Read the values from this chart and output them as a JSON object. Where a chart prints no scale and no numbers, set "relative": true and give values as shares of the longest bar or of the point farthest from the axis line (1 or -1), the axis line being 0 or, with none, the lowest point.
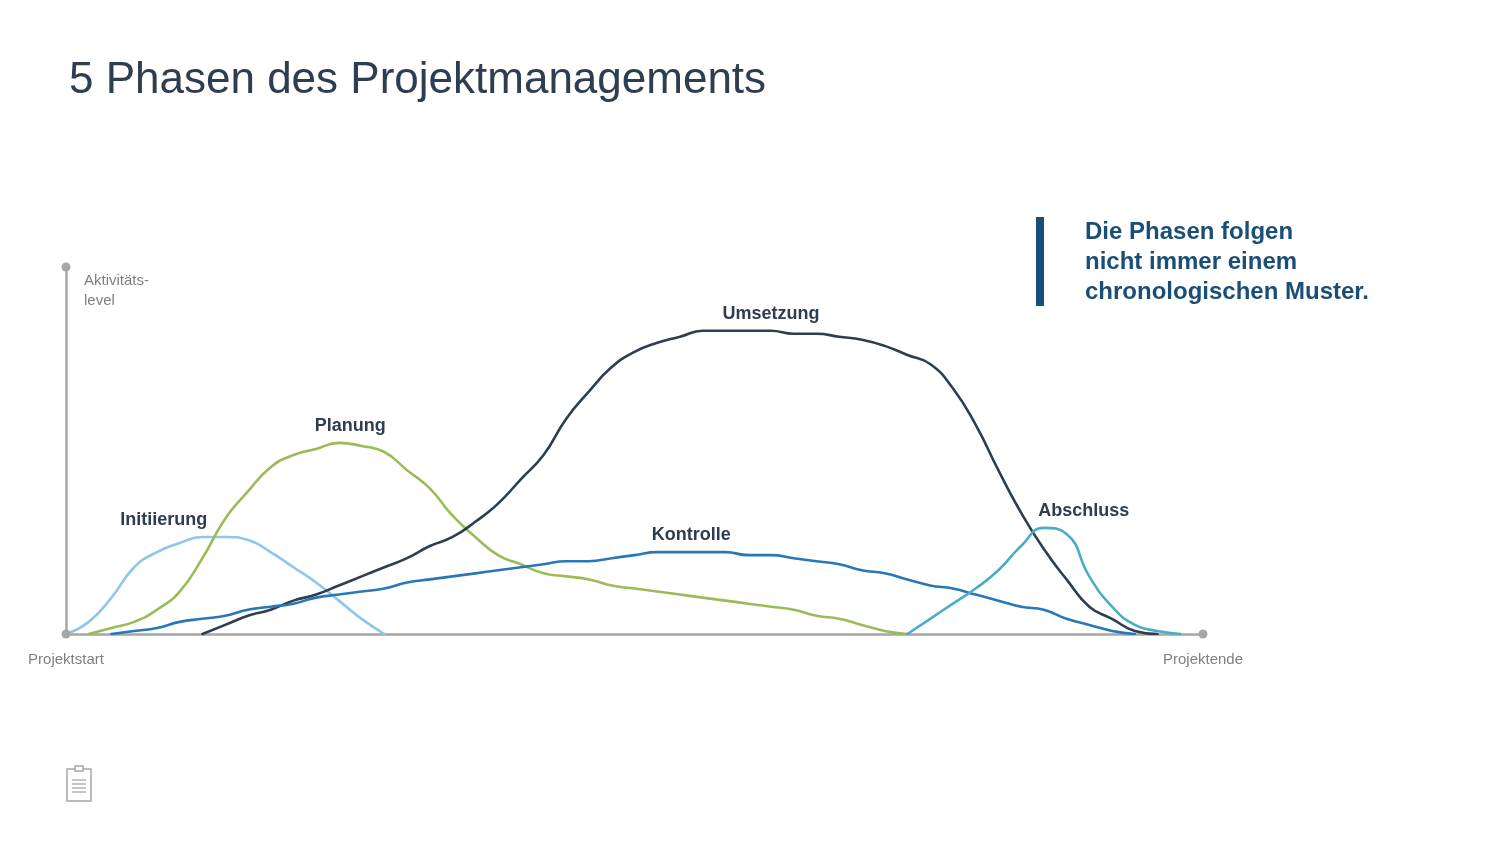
{
  "chart_data": {
    "type": "line",
    "title": "5 Phasen des Projektmanagements",
    "ylabel": "Aktivitäts-level",
    "annotations": [
      "Die Phasen folgen nicht immer einem chronologischen Muster."
    ],
    "relative": true,
    "categories": [
      "Projektstart",
      null,
      null,
      null,
      null,
      null,
      null,
      null,
      null,
      null,
      null,
      null,
      null,
      null,
      null,
      null,
      null,
      null,
      null,
      null,
      null,
      null,
      null,
      null,
      null,
      null,
      null,
      null,
      null,
      null,
      null,
      null,
      null,
      null,
      null,
      null,
      null,
      null,
      null,
      null,
      null,
      null,
      null,
      null,
      null,
      null,
      null,
      null,
      null,
      null,
      "Projektende"
    ],
    "marker": "none",
    "line_style": "solid",
    "series": [
      {
        "name": "Initiierung",
        "color": "#8fc6ea",
        "values": [
          0,
          0.04,
          0.12,
          0.22,
          0.27,
          0.3,
          0.32,
          0.32,
          0.31,
          0.27,
          0.22,
          0.17,
          0.11,
          0.05,
          0,
          null,
          null,
          null,
          null,
          null,
          null,
          null,
          null,
          null,
          null,
          null,
          null,
          null,
          null,
          null,
          null,
          null,
          null,
          null,
          null,
          null,
          null,
          null,
          null,
          null,
          null,
          null,
          null,
          null,
          null,
          null,
          null,
          null,
          null,
          null,
          null
        ]
      },
      {
        "name": "Planung",
        "color": "#9bbb59",
        "values": [
          null,
          0,
          0.02,
          0.04,
          0.08,
          0.14,
          0.25,
          0.38,
          0.47,
          0.55,
          0.59,
          0.61,
          0.63,
          0.62,
          0.6,
          0.54,
          0.48,
          0.39,
          0.32,
          0.26,
          0.23,
          0.2,
          0.19,
          0.18,
          0.16,
          0.15,
          0.14,
          0.13,
          0.12,
          0.11,
          0.1,
          0.09,
          0.08,
          0.06,
          0.05,
          0.03,
          0.01,
          0,
          null,
          null,
          null,
          null,
          null,
          null,
          null,
          null,
          null,
          null,
          null,
          null,
          null
        ]
      },
      {
        "name": "Umsetzung",
        "color": "#2d3e50",
        "values": [
          null,
          null,
          null,
          null,
          null,
          null,
          0,
          0.03,
          0.06,
          0.08,
          0.11,
          0.13,
          0.16,
          0.19,
          0.22,
          0.25,
          0.29,
          0.32,
          0.37,
          0.43,
          0.51,
          0.59,
          0.71,
          0.8,
          0.88,
          0.93,
          0.96,
          0.98,
          1.0,
          1.0,
          1.0,
          1.0,
          0.99,
          0.99,
          0.98,
          0.97,
          0.95,
          0.92,
          0.89,
          0.81,
          0.69,
          0.54,
          0.4,
          0.28,
          0.18,
          0.09,
          0.05,
          0.01,
          0,
          null,
          null
        ]
      },
      {
        "name": "Kontrolle",
        "color": "#2878b8",
        "values": [
          null,
          null,
          0,
          0.01,
          0.02,
          0.04,
          0.05,
          0.06,
          0.08,
          0.09,
          0.1,
          0.12,
          0.13,
          0.14,
          0.15,
          0.17,
          0.18,
          0.19,
          0.2,
          0.21,
          0.22,
          0.23,
          0.24,
          0.24,
          0.25,
          0.26,
          0.27,
          0.27,
          0.27,
          0.27,
          0.26,
          0.26,
          0.25,
          0.24,
          0.23,
          0.21,
          0.2,
          0.18,
          0.16,
          0.15,
          0.13,
          0.11,
          0.09,
          0.08,
          0.05,
          0.03,
          0.01,
          0,
          null,
          null,
          null
        ]
      },
      {
        "name": "Abschluss",
        "color": "#4bacc6",
        "values": [
          null,
          null,
          null,
          null,
          null,
          null,
          null,
          null,
          null,
          null,
          null,
          null,
          null,
          null,
          null,
          null,
          null,
          null,
          null,
          null,
          null,
          null,
          null,
          null,
          null,
          null,
          null,
          null,
          null,
          null,
          null,
          null,
          null,
          null,
          null,
          null,
          null,
          0,
          0.05,
          0.1,
          0.15,
          0.21,
          0.29,
          0.35,
          0.33,
          0.19,
          0.09,
          0.03,
          0.01,
          0,
          null
        ]
      }
    ]
  }
}
